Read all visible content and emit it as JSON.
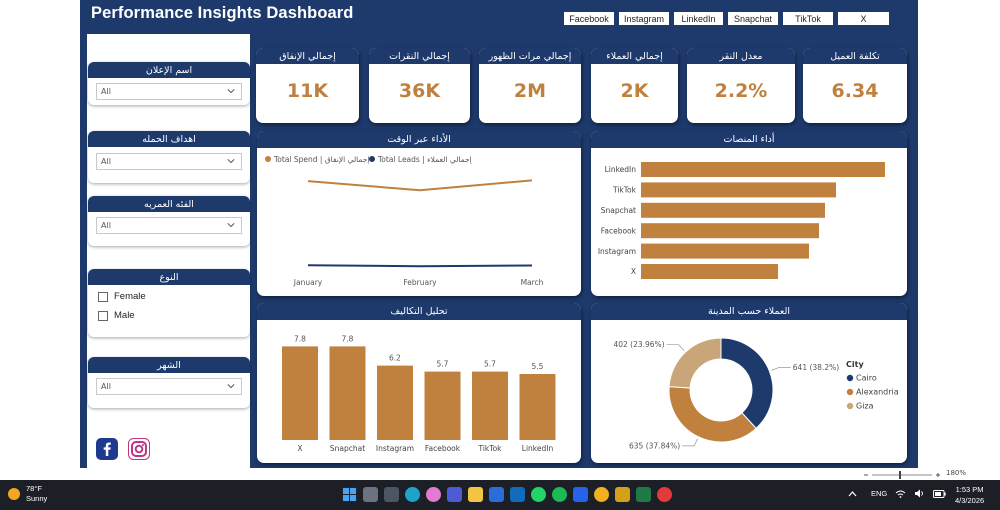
{
  "header": {
    "title": "Performance Insights Dashboard",
    "platform_tabs": [
      "Facebook",
      "Instagram",
      "LinkedIn",
      "Snapchat",
      "TikTok",
      "X"
    ]
  },
  "filters": {
    "ad_name": {
      "title": "اسم الإعلان",
      "value": "All"
    },
    "campaign_goals": {
      "title": "اهداف الحمله",
      "value": "All"
    },
    "age_group": {
      "title": "الفئه العمريه",
      "value": "All"
    },
    "gender": {
      "title": "النوع",
      "options": [
        "Female",
        "Male"
      ]
    },
    "month": {
      "title": "الشهر",
      "value": "All"
    }
  },
  "social_icons": [
    "facebook-icon",
    "instagram-icon"
  ],
  "kpis": [
    {
      "title": "إجمالي الإنفاق",
      "value": "11K"
    },
    {
      "title": "إجمالي النقرات",
      "value": "36K"
    },
    {
      "title": "إجمالي مرات الظهور",
      "value": "2M"
    },
    {
      "title": "إجمالي العملاء",
      "value": "2K"
    },
    {
      "title": "معدل النقر",
      "value": "2.2%"
    },
    {
      "title": "تكلفة العميل",
      "value": "6.34"
    }
  ],
  "colors": {
    "navy": "#1e3a6d",
    "gold": "#c0813f",
    "giza": "#c9a57a"
  },
  "chart_data": [
    {
      "type": "line",
      "title": "الأداء عبر الوقت",
      "categories": [
        "January",
        "February",
        "March"
      ],
      "legend": "top-left",
      "series": [
        {
          "name": "Total Spend | إجمالي الإنفاق",
          "color": "#c0813f",
          "values": [
            3800,
            3450,
            3830
          ]
        },
        {
          "name": "Total Leads | إجمالي العملاء",
          "color": "#1e3a6d",
          "values": [
            600,
            560,
            590
          ]
        }
      ],
      "ylim": [
        0,
        4300
      ]
    },
    {
      "type": "bar",
      "orientation": "horizontal",
      "title": "أداء المنصات",
      "categories": [
        "LinkedIn",
        "TikTok",
        "Snapchat",
        "Facebook",
        "Instagram",
        "X"
      ],
      "values": [
        2440,
        1950,
        1840,
        1780,
        1680,
        1370
      ],
      "xlim": [
        0,
        2600
      ]
    },
    {
      "type": "bar",
      "title": "تحليل التكاليف",
      "categories": [
        "X",
        "Snapchat",
        "Instagram",
        "Facebook",
        "TikTok",
        "LinkedIn"
      ],
      "values": [
        7.8,
        7.8,
        6.2,
        5.7,
        5.7,
        5.5
      ],
      "labels": [
        "7.8",
        "7.8",
        "6.2",
        "5.7",
        "5.7",
        "5.5"
      ],
      "ylim": [
        0,
        8.5
      ]
    },
    {
      "type": "pie",
      "donut": true,
      "title": "العملاء حسب المدينة",
      "legend_title": "City",
      "legend": "right",
      "slices": [
        {
          "name": "Cairo",
          "value": 641,
          "label": "641 (38.2%)",
          "color": "#1e3a6d"
        },
        {
          "name": "Alexandria",
          "value": 635,
          "label": "635 (37.84%)",
          "color": "#c0813f"
        },
        {
          "name": "Giza",
          "value": 402,
          "label": "402 (23.96%)",
          "color": "#c9a57a"
        }
      ]
    }
  ],
  "statusbar": {
    "zoom": "180%"
  },
  "taskbar": {
    "weather_temp": "78°F",
    "weather_desc": "Sunny",
    "lang": "ENG",
    "time": "1:53 PM",
    "date": "4/3/2026"
  }
}
